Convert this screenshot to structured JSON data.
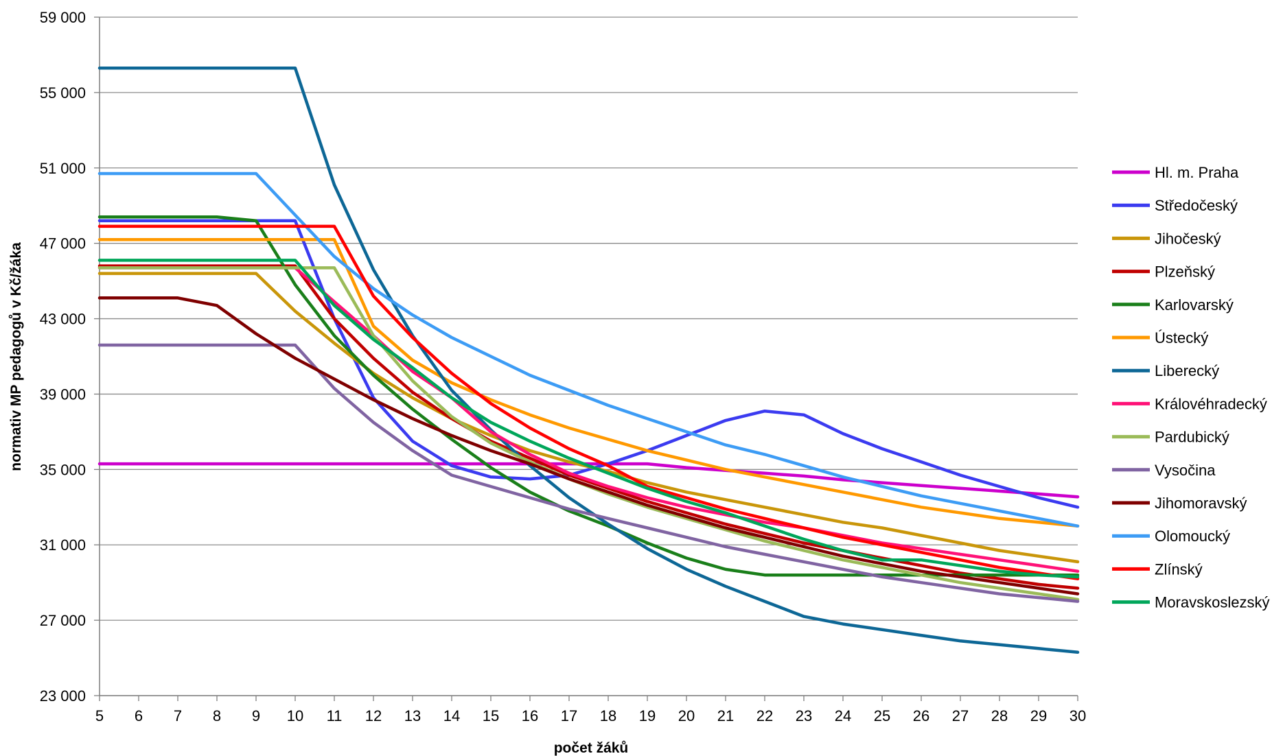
{
  "chart_data": {
    "type": "line",
    "title": "",
    "xlabel": "počet žáků",
    "ylabel": "normativ MP pedagogů v Kč/žáka",
    "x": [
      5,
      6,
      7,
      8,
      9,
      10,
      11,
      12,
      13,
      14,
      15,
      16,
      17,
      18,
      19,
      20,
      21,
      22,
      23,
      24,
      25,
      26,
      27,
      28,
      29,
      30
    ],
    "xlim": [
      5,
      30
    ],
    "ylim": [
      23000,
      59000
    ],
    "y_ticks": [
      23000,
      27000,
      31000,
      35000,
      39000,
      43000,
      47000,
      51000,
      55000,
      59000
    ],
    "y_tick_labels": [
      "23 000",
      "27 000",
      "31 000",
      "35 000",
      "39 000",
      "43 000",
      "47 000",
      "51 000",
      "55 000",
      "59 000"
    ],
    "x_tick_labels": [
      "5",
      "6",
      "7",
      "8",
      "9",
      "10",
      "11",
      "12",
      "13",
      "14",
      "15",
      "16",
      "17",
      "18",
      "19",
      "20",
      "21",
      "22",
      "23",
      "24",
      "25",
      "26",
      "27",
      "28",
      "29",
      "30"
    ],
    "grid": "horizontal",
    "legend_position": "right",
    "series": [
      {
        "name": "Hl. m. Praha",
        "color": "#cc00cc",
        "values": [
          35300,
          35300,
          35300,
          35300,
          35300,
          35300,
          35300,
          35300,
          35300,
          35300,
          35300,
          35300,
          35300,
          35300,
          35300,
          35100,
          34950,
          34800,
          34650,
          34450,
          34300,
          34150,
          34000,
          33850,
          33700,
          33550
        ]
      },
      {
        "name": "Středočeský",
        "color": "#3b3bf0",
        "values": [
          48200,
          48200,
          48200,
          48200,
          48200,
          48200,
          43000,
          38800,
          36500,
          35200,
          34600,
          34500,
          34700,
          35300,
          36000,
          36800,
          37600,
          38100,
          37900,
          36900,
          36100,
          35400,
          34700,
          34100,
          33500,
          33000
        ]
      },
      {
        "name": "Jihočeský",
        "color": "#c9960a",
        "values": [
          45400,
          45400,
          45400,
          45400,
          45400,
          43400,
          41700,
          40100,
          38800,
          37700,
          36800,
          36000,
          35400,
          34900,
          34300,
          33800,
          33400,
          33000,
          32600,
          32200,
          31900,
          31500,
          31100,
          30700,
          30400,
          30100
        ]
      },
      {
        "name": "Plzeňský",
        "color": "#c00000",
        "values": [
          45800,
          45800,
          45800,
          45800,
          45800,
          45800,
          43000,
          40900,
          39100,
          37700,
          36500,
          35600,
          34700,
          34000,
          33300,
          32700,
          32100,
          31600,
          31100,
          30700,
          30300,
          29900,
          29500,
          29200,
          28900,
          28700
        ]
      },
      {
        "name": "Karlovarský",
        "color": "#1a7f1a",
        "values": [
          48400,
          48400,
          48400,
          48400,
          48200,
          44800,
          42100,
          40000,
          38200,
          36600,
          35100,
          33800,
          32800,
          32000,
          31100,
          30300,
          29700,
          29400,
          29400,
          29400,
          29400,
          29400,
          29400,
          29400,
          29400,
          29400
        ]
      },
      {
        "name": "Ústecký",
        "color": "#ff9900",
        "values": [
          47200,
          47200,
          47200,
          47200,
          47200,
          47200,
          47200,
          42600,
          40800,
          39600,
          38700,
          37900,
          37200,
          36600,
          36000,
          35500,
          35000,
          34600,
          34200,
          33800,
          33400,
          33000,
          32700,
          32400,
          32200,
          32000
        ]
      },
      {
        "name": "Liberecký",
        "color": "#0d6796",
        "values": [
          56300,
          56300,
          56300,
          56300,
          56300,
          56300,
          50100,
          45600,
          42100,
          39200,
          37100,
          35200,
          33500,
          32100,
          30800,
          29700,
          28800,
          28000,
          27200,
          26800,
          26500,
          26200,
          25900,
          25700,
          25500,
          25300
        ]
      },
      {
        "name": "Královéhradecký",
        "color": "#ff1177",
        "values": [
          45700,
          45700,
          45700,
          45700,
          45700,
          45700,
          43900,
          42100,
          40200,
          38800,
          37000,
          35800,
          34800,
          34100,
          33500,
          33000,
          32600,
          32200,
          31900,
          31500,
          31100,
          30800,
          30500,
          30200,
          29900,
          29600
        ]
      },
      {
        "name": "Pardubický",
        "color": "#9bbb59",
        "values": [
          45700,
          45700,
          45700,
          45700,
          45700,
          45700,
          45700,
          42100,
          39700,
          37800,
          36400,
          35400,
          34500,
          33700,
          33000,
          32400,
          31800,
          31200,
          30700,
          30200,
          29800,
          29400,
          29000,
          28700,
          28400,
          28100
        ]
      },
      {
        "name": "Vysočina",
        "color": "#8064a2",
        "values": [
          41600,
          41600,
          41600,
          41600,
          41600,
          41600,
          39300,
          37500,
          36000,
          34700,
          34100,
          33500,
          32900,
          32400,
          31900,
          31400,
          30900,
          30500,
          30100,
          29700,
          29300,
          29000,
          28700,
          28400,
          28200,
          28000
        ]
      },
      {
        "name": "Jihomoravský",
        "color": "#7f0000",
        "values": [
          44100,
          44100,
          44100,
          43700,
          42200,
          40900,
          39800,
          38700,
          37700,
          36800,
          36000,
          35300,
          34500,
          33800,
          33100,
          32500,
          31900,
          31400,
          30900,
          30400,
          30000,
          29600,
          29300,
          29000,
          28700,
          28400
        ]
      },
      {
        "name": "Olomoucký",
        "color": "#3d9cf5",
        "values": [
          50700,
          50700,
          50700,
          50700,
          50700,
          48500,
          46300,
          44600,
          43200,
          42000,
          41000,
          40000,
          39200,
          38400,
          37700,
          37000,
          36300,
          35800,
          35200,
          34600,
          34100,
          33600,
          33200,
          32800,
          32400,
          32000
        ]
      },
      {
        "name": "Zlínský",
        "color": "#ff0000",
        "values": [
          47900,
          47900,
          47900,
          47900,
          47900,
          47900,
          47900,
          44200,
          42000,
          40100,
          38500,
          37200,
          36100,
          35200,
          34100,
          33500,
          32900,
          32400,
          31900,
          31400,
          31000,
          30600,
          30200,
          29800,
          29500,
          29200
        ]
      },
      {
        "name": "Moravskoslezský",
        "color": "#00a65a",
        "values": [
          46100,
          46100,
          46100,
          46100,
          46100,
          46100,
          43700,
          41900,
          40400,
          38800,
          37500,
          36500,
          35600,
          34800,
          34000,
          33300,
          32700,
          32000,
          31300,
          30700,
          30200,
          30200,
          29900,
          29600,
          29400,
          29300
        ]
      }
    ]
  }
}
